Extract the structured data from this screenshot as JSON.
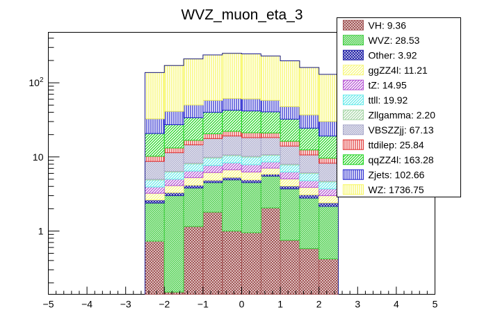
{
  "chart_data": {
    "type": "bar",
    "stacked": true,
    "title": "WVZ_muon_eta_3",
    "xlabel": "",
    "ylabel": "",
    "yscale": "log",
    "xlim": [
      -5,
      5
    ],
    "ylim": [
      0.14,
      480
    ],
    "grid": false,
    "legend_position": "top-right",
    "x_ticks": [
      -5,
      -4,
      -3,
      -2,
      -1,
      0,
      1,
      2,
      3,
      4,
      5
    ],
    "x_tick_labels": [
      "−5",
      "−4",
      "−3",
      "−2",
      "−1",
      "0",
      "1",
      "2",
      "3",
      "4",
      "5"
    ],
    "y_ticks": [
      1,
      10,
      100
    ],
    "y_tick_labels": [
      "1",
      "10",
      "10²"
    ],
    "bin_edges": [
      -2.5,
      -2.0,
      -1.5,
      -1.0,
      -0.5,
      0.0,
      0.5,
      1.0,
      1.5,
      2.0,
      2.5
    ],
    "series": [
      {
        "name": "VH",
        "legend": "VH: 9.36",
        "color": "#a05252",
        "hatch": "cross-dense",
        "values": [
          0.73,
          0.15,
          1.15,
          1.8,
          1.0,
          0.95,
          2.05,
          0.75,
          0.58,
          0.42
        ]
      },
      {
        "name": "WVZ",
        "legend": "WVZ: 28.53",
        "color": "#3ccc3c",
        "hatch": "diag-dense",
        "values": [
          1.65,
          2.85,
          2.65,
          2.7,
          3.9,
          3.55,
          3.45,
          2.95,
          2.2,
          1.73
        ]
      },
      {
        "name": "Other",
        "legend": "Other: 3.92",
        "color": "#2424a8",
        "hatch": "cross-dense",
        "values": [
          0.25,
          0.3,
          0.35,
          0.35,
          0.4,
          0.4,
          0.35,
          0.35,
          0.3,
          0.25
        ]
      },
      {
        "name": "ggZZ4l",
        "legend": "ggZZ4l: 11.21",
        "color": "#f7f77c",
        "hatch": "diag",
        "values": [
          0.6,
          0.8,
          1.1,
          1.3,
          1.4,
          1.35,
          1.2,
          1.0,
          0.8,
          0.6
        ]
      },
      {
        "name": "tZ",
        "legend": "tZ: 14.95",
        "color": "#b552d4",
        "hatch": "diag",
        "values": [
          0.7,
          0.9,
          1.2,
          1.5,
          1.6,
          1.6,
          1.5,
          1.2,
          0.9,
          0.7
        ]
      },
      {
        "name": "ttll",
        "legend": "ttll: 19.92",
        "color": "#66eaea",
        "hatch": "diag",
        "values": [
          0.95,
          1.25,
          1.6,
          2.0,
          2.1,
          2.1,
          1.95,
          1.55,
          1.2,
          0.9
        ]
      },
      {
        "name": "Zllgamma",
        "legend": "Zllgamma: 2.20",
        "color": "#a3d4a3",
        "hatch": "diag",
        "values": [
          0.12,
          0.15,
          0.2,
          0.25,
          0.25,
          0.25,
          0.25,
          0.2,
          0.15,
          0.12
        ]
      },
      {
        "name": "VBSZZjj",
        "legend": "VBSZZjj: 67.13",
        "color": "#a9a9cc",
        "hatch": "diag-dense",
        "values": [
          3.7,
          5.0,
          6.3,
          7.8,
          8.5,
          8.0,
          7.5,
          6.0,
          4.5,
          3.5
        ]
      },
      {
        "name": "ttdilep",
        "legend": "ttdilep: 25.84",
        "color": "#e02a2a",
        "hatch": "vert",
        "values": [
          1.5,
          1.8,
          2.2,
          2.8,
          3.0,
          3.0,
          2.8,
          2.3,
          1.8,
          1.4
        ]
      },
      {
        "name": "qqZZ4l",
        "legend": "qqZZ4l: 163.28",
        "color": "#1fd41f",
        "hatch": "diag",
        "values": [
          10.5,
          14.0,
          17.0,
          19.5,
          20.5,
          20.5,
          19.5,
          16.0,
          12.0,
          9.5
        ]
      },
      {
        "name": "Zjets",
        "legend": "Zjets: 102.66",
        "color": "#1a1acc",
        "hatch": "vert",
        "values": [
          12.0,
          14.0,
          16.5,
          18.0,
          19.0,
          19.0,
          17.5,
          15.5,
          12.5,
          11.0
        ]
      },
      {
        "name": "WZ",
        "legend": "WZ: 1736.75",
        "color": "#f7f75a",
        "hatch": "vert",
        "values": [
          105,
          130,
          160,
          180,
          188,
          185,
          172,
          150,
          124,
          100
        ]
      }
    ]
  }
}
